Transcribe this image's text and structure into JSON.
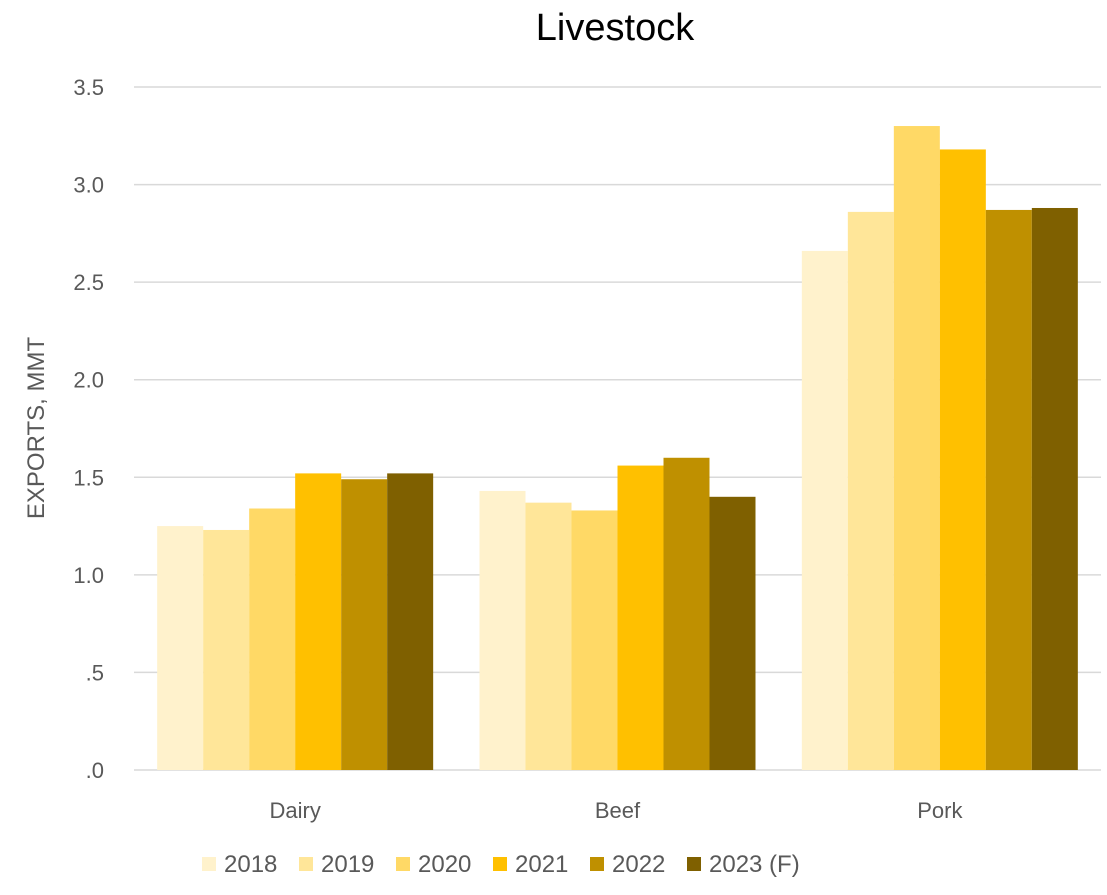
{
  "chart_data": {
    "type": "bar",
    "title": "Livestock",
    "ylabel": "EXPORTS, MMT",
    "xlabel": "",
    "ylim": [
      0,
      3.5
    ],
    "yticks": [
      0,
      0.5,
      1.0,
      1.5,
      2.0,
      2.5,
      3.0,
      3.5
    ],
    "ytick_labels": [
      ".0",
      ".5",
      "1.0",
      "1.5",
      "2.0",
      "2.5",
      "3.0",
      "3.5"
    ],
    "categories": [
      "Dairy",
      "Beef",
      "Pork"
    ],
    "grid": true,
    "legend_position": "bottom",
    "series": [
      {
        "name": "2018",
        "color": "#FFF2CC",
        "values": [
          1.25,
          1.43,
          2.66
        ]
      },
      {
        "name": "2019",
        "color": "#FFE699",
        "values": [
          1.23,
          1.37,
          2.86
        ]
      },
      {
        "name": "2020",
        "color": "#FFD966",
        "values": [
          1.34,
          1.33,
          3.3
        ]
      },
      {
        "name": "2021",
        "color": "#FFC000",
        "values": [
          1.52,
          1.56,
          3.18
        ]
      },
      {
        "name": "2022",
        "color": "#BF9000",
        "values": [
          1.49,
          1.6,
          2.87
        ]
      },
      {
        "name": "2023 (F)",
        "color": "#7F6000",
        "values": [
          1.52,
          1.4,
          2.88
        ]
      }
    ]
  }
}
